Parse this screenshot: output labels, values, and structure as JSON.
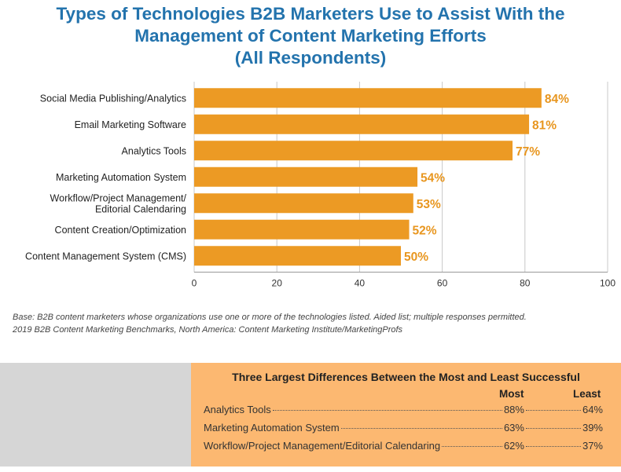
{
  "chart_data": {
    "type": "bar",
    "orientation": "horizontal",
    "title_lines": [
      "Types of Technologies B2B Marketers Use to Assist With the",
      "Management of Content Marketing Efforts",
      "(All Respondents)"
    ],
    "categories": [
      [
        "Social Media Publishing/Analytics"
      ],
      [
        "Email Marketing Software"
      ],
      [
        "Analytics Tools"
      ],
      [
        "Marketing Automation System"
      ],
      [
        "Workflow/Project Management/",
        "Editorial Calendaring"
      ],
      [
        "Content Creation/Optimization"
      ],
      [
        "Content Management System (CMS)"
      ]
    ],
    "values": [
      84,
      81,
      77,
      54,
      53,
      52,
      50
    ],
    "value_labels": [
      "84%",
      "81%",
      "77%",
      "54%",
      "53%",
      "52%",
      "50%"
    ],
    "xlim": [
      0,
      100
    ],
    "xticks": [
      0,
      20,
      40,
      60,
      80,
      100
    ],
    "grid": "vertical",
    "bar_color": "#ec9a24",
    "label_color": "#e8961f"
  },
  "notes": {
    "base": "Base: B2B content marketers whose organizations use one or more of the technologies listed. Aided list; multiple responses permitted.",
    "source": "2019 B2B Content Marketing Benchmarks, North America: Content Marketing Institute/MarketingProfs"
  },
  "panel": {
    "title": "Three Largest Differences Between the Most and Least Successful",
    "col_most": "Most",
    "col_least": "Least",
    "rows": [
      {
        "label": "Analytics Tools",
        "most": "88%",
        "least": "64%"
      },
      {
        "label": "Marketing Automation System",
        "most": "63%",
        "least": "39%"
      },
      {
        "label": "Workflow/Project Management/Editorial Calendaring",
        "most": "62%",
        "least": "37%"
      }
    ],
    "bg_color": "#fcb871"
  }
}
